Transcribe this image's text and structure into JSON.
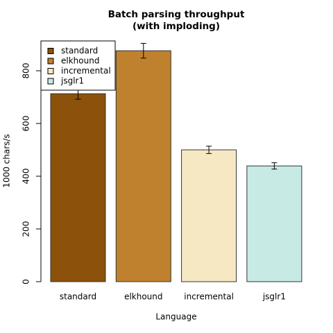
{
  "chart_data": {
    "type": "bar",
    "title": "Batch parsing throughput",
    "subtitle": "(with imploding)",
    "x_label": "Language",
    "y_label": "1000 chars/s",
    "categories": [
      "standard",
      "elkhound",
      "incremental",
      "jsglr1"
    ],
    "values": [
      713,
      876,
      500,
      439
    ],
    "errors": [
      21,
      28,
      14,
      12
    ],
    "colors": [
      "#8c510a",
      "#bf812d",
      "#f6e8c3",
      "#c7eae5"
    ],
    "ylim": [
      0,
      900
    ],
    "yticks": [
      0,
      200,
      400,
      600,
      800
    ],
    "legend": "top-left"
  }
}
